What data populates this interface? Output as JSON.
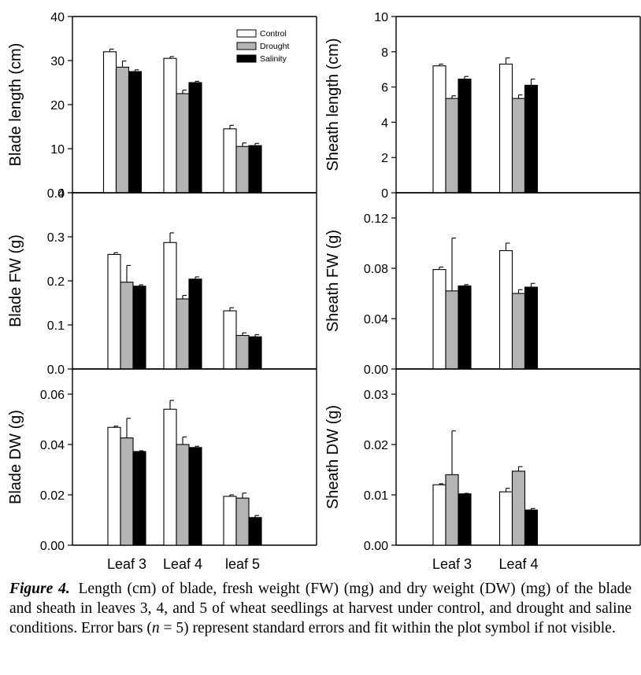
{
  "legend": {
    "entries": [
      {
        "name": "Control",
        "color": "#ffffff"
      },
      {
        "name": "Drought",
        "color": "#b4b4b4"
      },
      {
        "name": "Salinity",
        "color": "#000000"
      }
    ]
  },
  "caption": {
    "label": "Figure 4.",
    "part1": "Length (cm) of blade, fresh weight (FW) (mg) and dry weight (DW) (mg) of the blade and sheath in leaves 3, 4, and 5 of wheat seedlings at harvest under control, and drought and saline conditions. Error bars (",
    "n_symbol": "n",
    "part2": " = 5) represent standard errors and fit within the plot symbol if not visible."
  },
  "chart_data": [
    {
      "type": "bar",
      "panel": "top-left",
      "ylabel": "Blade length (cm)",
      "categories": [
        "Leaf 3",
        "Leaf 4",
        "leaf 5"
      ],
      "ylim": [
        0,
        40
      ],
      "yticks": [
        0,
        10,
        20,
        30,
        40
      ],
      "yticklabels": [
        "0",
        "10",
        "20",
        "30",
        "40"
      ],
      "series": [
        {
          "name": "Control",
          "values": [
            32.0,
            30.5,
            14.5
          ],
          "errors": [
            0.6,
            0.4,
            0.8
          ]
        },
        {
          "name": "Drought",
          "values": [
            28.5,
            22.5,
            10.5
          ],
          "errors": [
            1.4,
            0.8,
            0.8
          ]
        },
        {
          "name": "Salinity",
          "values": [
            27.5,
            25.0,
            10.7
          ],
          "errors": [
            0.4,
            0.3,
            0.5
          ]
        }
      ]
    },
    {
      "type": "bar",
      "panel": "top-right",
      "ylabel": "Sheath length (cm)",
      "categories": [
        "Leaf 3",
        "Leaf 4"
      ],
      "ylim": [
        0,
        10
      ],
      "yticks": [
        0,
        2,
        4,
        6,
        8,
        10
      ],
      "yticklabels": [
        "0",
        "2",
        "4",
        "6",
        "8",
        "10"
      ],
      "series": [
        {
          "name": "Control",
          "values": [
            7.2,
            7.3
          ],
          "errors": [
            0.1,
            0.35
          ]
        },
        {
          "name": "Drought",
          "values": [
            5.35,
            5.35
          ],
          "errors": [
            0.15,
            0.2
          ]
        },
        {
          "name": "Salinity",
          "values": [
            6.45,
            6.1
          ],
          "errors": [
            0.15,
            0.35
          ]
        }
      ]
    },
    {
      "type": "bar",
      "panel": "middle-left",
      "ylabel": "Blade FW (g)",
      "categories": [
        "Leaf 3",
        "Leaf 4",
        "leaf 5"
      ],
      "ylim": [
        0,
        0.4
      ],
      "yticks": [
        0,
        0.1,
        0.2,
        0.3,
        0.4
      ],
      "yticklabels": [
        "0.0",
        "0.1",
        "0.2",
        "0.3",
        "0.4"
      ],
      "series": [
        {
          "name": "Control",
          "values": [
            0.26,
            0.287,
            0.132
          ],
          "errors": [
            0.004,
            0.022,
            0.007
          ]
        },
        {
          "name": "Drought",
          "values": [
            0.197,
            0.159,
            0.076
          ],
          "errors": [
            0.038,
            0.008,
            0.006
          ]
        },
        {
          "name": "Salinity",
          "values": [
            0.188,
            0.204,
            0.073
          ],
          "errors": [
            0.003,
            0.005,
            0.005
          ]
        }
      ]
    },
    {
      "type": "bar",
      "panel": "middle-right",
      "ylabel": "Sheath FW (g)",
      "categories": [
        "Leaf 3",
        "Leaf 4"
      ],
      "ylim": [
        0,
        0.14
      ],
      "yticks": [
        0,
        0.04,
        0.08,
        0.12
      ],
      "yticklabels": [
        "0.00",
        "0.04",
        "0.08",
        "0.12"
      ],
      "series": [
        {
          "name": "Control",
          "values": [
            0.079,
            0.094
          ],
          "errors": [
            0.002,
            0.006
          ]
        },
        {
          "name": "Drought",
          "values": [
            0.062,
            0.06
          ],
          "errors": [
            0.042,
            0.003
          ]
        },
        {
          "name": "Salinity",
          "values": [
            0.066,
            0.065
          ],
          "errors": [
            0.001,
            0.003
          ]
        }
      ]
    },
    {
      "type": "bar",
      "panel": "bottom-left",
      "ylabel": "Blade DW (g)",
      "categories": [
        "Leaf 3",
        "Leaf 4",
        "leaf 5"
      ],
      "ylim": [
        0,
        0.07
      ],
      "yticks": [
        0,
        0.02,
        0.04,
        0.06
      ],
      "yticklabels": [
        "0.00",
        "0.02",
        "0.04",
        "0.06"
      ],
      "series": [
        {
          "name": "Control",
          "values": [
            0.0468,
            0.054,
            0.0194
          ],
          "errors": [
            0.0005,
            0.0035,
            0.0006
          ]
        },
        {
          "name": "Drought",
          "values": [
            0.0426,
            0.04,
            0.0187
          ],
          "errors": [
            0.0078,
            0.003,
            0.002
          ]
        },
        {
          "name": "Salinity",
          "values": [
            0.0372,
            0.0388,
            0.011
          ],
          "errors": [
            0.0003,
            0.0005,
            0.0008
          ]
        }
      ]
    },
    {
      "type": "bar",
      "panel": "bottom-right",
      "ylabel": "Sheath DW (g)",
      "categories": [
        "Leaf 3",
        "Leaf 4"
      ],
      "ylim": [
        0,
        0.035
      ],
      "yticks": [
        0,
        0.01,
        0.02,
        0.03
      ],
      "yticklabels": [
        "0.00",
        "0.01",
        "0.02",
        "0.03"
      ],
      "series": [
        {
          "name": "Control",
          "values": [
            0.012,
            0.0106
          ],
          "errors": [
            0.0002,
            0.0007
          ]
        },
        {
          "name": "Drought",
          "values": [
            0.014,
            0.0147
          ],
          "errors": [
            0.0087,
            0.0009
          ]
        },
        {
          "name": "Salinity",
          "values": [
            0.0102,
            0.007
          ],
          "errors": [
            0.0001,
            0.0003
          ]
        }
      ]
    }
  ]
}
